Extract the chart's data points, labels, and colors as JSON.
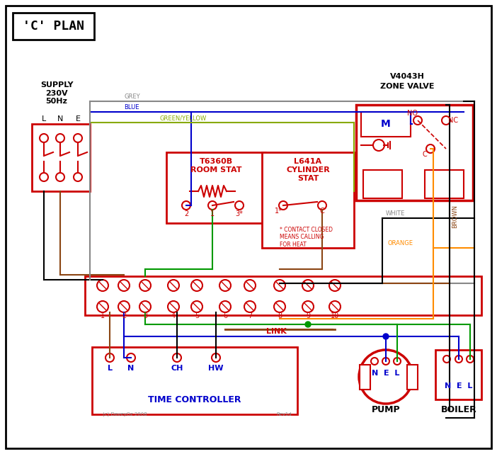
{
  "title": "'C' PLAN",
  "bg_color": "#ffffff",
  "border_color": "#000000",
  "red": "#cc0000",
  "dark_red": "#cc0000",
  "blue": "#0000cc",
  "green": "#009900",
  "grey": "#888888",
  "brown": "#8B4513",
  "orange": "#FF8C00",
  "black": "#000000",
  "white_wire": "#dddddd",
  "green_yellow": "#88aa00",
  "dashed_red": "#cc0000",
  "supply_text": "SUPPLY\n230V\n50Hz",
  "lne_labels": [
    "L",
    "N",
    "E"
  ],
  "zone_valve_title": "V4043H\nZONE VALVE",
  "room_stat_title": "T6360B\nROOM STAT",
  "cyl_stat_title": "L641A\nCYLINDER\nSTAT",
  "time_ctrl_title": "TIME CONTROLLER",
  "pump_title": "PUMP",
  "boiler_title": "BOILER",
  "terminal_labels": [
    "1",
    "2",
    "3",
    "4",
    "5",
    "6",
    "7",
    "8",
    "9",
    "10"
  ],
  "tc_terminals": [
    "L",
    "N",
    "CH",
    "HW"
  ],
  "contact_note": "* CONTACT CLOSED\nMEANS CALLING\nFOR HEAT",
  "link_label": "LINK",
  "copyright": "(c) DaveyOz 2008",
  "rev": "Rev1d"
}
